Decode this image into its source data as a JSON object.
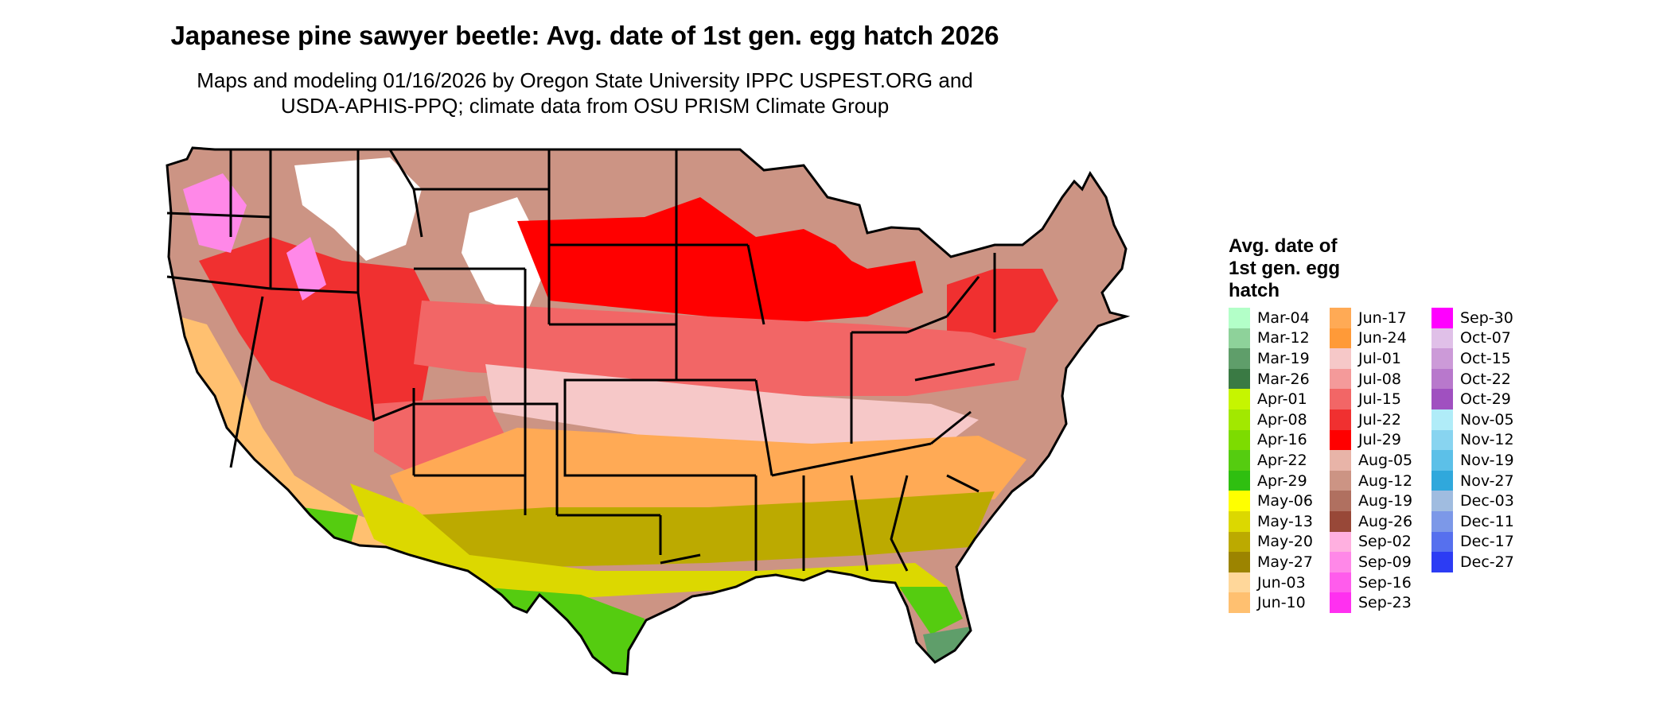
{
  "title": "Japanese pine sawyer beetle: Avg. date of 1st gen. egg hatch 2026",
  "subtitle_lines": [
    "Maps and modeling 01/16/2026 by Oregon State University IPPC USPEST.ORG and",
    "USDA-APHIS-PPQ; climate data from OSU PRISM Climate Group"
  ],
  "legend": {
    "title_lines": [
      "Avg. date of",
      "1st gen. egg",
      "hatch"
    ],
    "columns": [
      [
        {
          "label": "Mar-04",
          "color": "#b3ffc8"
        },
        {
          "label": "Mar-12",
          "color": "#8ed29a"
        },
        {
          "label": "Mar-19",
          "color": "#5f9e6a"
        },
        {
          "label": "Mar-26",
          "color": "#3a7a44"
        },
        {
          "label": "Apr-01",
          "color": "#c6f500"
        },
        {
          "label": "Apr-08",
          "color": "#a2e800"
        },
        {
          "label": "Apr-16",
          "color": "#7ddc00"
        },
        {
          "label": "Apr-22",
          "color": "#55cc10"
        },
        {
          "label": "Apr-29",
          "color": "#2fbf10"
        },
        {
          "label": "May-06",
          "color": "#ffff00"
        },
        {
          "label": "May-13",
          "color": "#dcd800"
        },
        {
          "label": "May-20",
          "color": "#bcaa00"
        },
        {
          "label": "May-27",
          "color": "#9c8400"
        },
        {
          "label": "Jun-03",
          "color": "#ffd79a"
        },
        {
          "label": "Jun-10",
          "color": "#ffc070"
        }
      ],
      [
        {
          "label": "Jun-17",
          "color": "#ffaa55"
        },
        {
          "label": "Jun-24",
          "color": "#ff9a38"
        },
        {
          "label": "Jul-01",
          "color": "#f6c8c8"
        },
        {
          "label": "Jul-08",
          "color": "#f49a9a"
        },
        {
          "label": "Jul-15",
          "color": "#f26666"
        },
        {
          "label": "Jul-22",
          "color": "#f03030"
        },
        {
          "label": "Jul-29",
          "color": "#ff0000"
        },
        {
          "label": "Aug-05",
          "color": "#e8b4a8"
        },
        {
          "label": "Aug-12",
          "color": "#cc9484"
        },
        {
          "label": "Aug-19",
          "color": "#b07060"
        },
        {
          "label": "Aug-26",
          "color": "#984838"
        },
        {
          "label": "Sep-02",
          "color": "#ffb0e0"
        },
        {
          "label": "Sep-09",
          "color": "#ff88e8"
        },
        {
          "label": "Sep-16",
          "color": "#ff5cec"
        },
        {
          "label": "Sep-23",
          "color": "#ff30f0"
        }
      ],
      [
        {
          "label": "Sep-30",
          "color": "#ff00ff"
        },
        {
          "label": "Oct-07",
          "color": "#e0c0e8"
        },
        {
          "label": "Oct-15",
          "color": "#cc9ad8"
        },
        {
          "label": "Oct-22",
          "color": "#b878cc"
        },
        {
          "label": "Oct-29",
          "color": "#a050c0"
        },
        {
          "label": "Nov-05",
          "color": "#b0ecf8"
        },
        {
          "label": "Nov-12",
          "color": "#88d4f0"
        },
        {
          "label": "Nov-19",
          "color": "#5cc0e8"
        },
        {
          "label": "Nov-27",
          "color": "#30a8dc"
        },
        {
          "label": "Dec-03",
          "color": "#a0bce0"
        },
        {
          "label": "Dec-11",
          "color": "#7c98e8"
        },
        {
          "label": "Dec-17",
          "color": "#5670ee"
        },
        {
          "label": "Dec-27",
          "color": "#2c3cf4"
        }
      ]
    ]
  },
  "map_colors": {
    "outline": "#000000",
    "north_mountains": "#ffffff",
    "northern_magenta": "#ff88e8",
    "northern_brown": "#cc9484",
    "upper_midwest_red": "#ff0000",
    "midwest_red": "#f26666",
    "lower_midwest_pink": "#f6c8c8",
    "south_orange": "#ffaa55",
    "deep_south_olive": "#bcaa00",
    "gulf_yellow": "#dcd800",
    "gulf_green": "#55cc10",
    "florida_green": "#5f9e6a",
    "west_coast_orange": "#ffc070"
  }
}
